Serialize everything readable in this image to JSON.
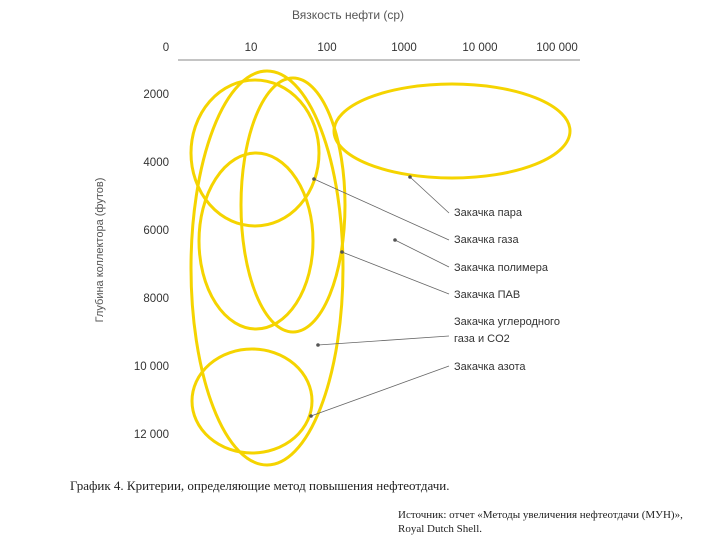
{
  "chart_data": {
    "type": "diagram",
    "x_axis": {
      "label": "Вязкость нефти (ср)",
      "ticks": [
        "0",
        "10",
        "100",
        "1000",
        "10 000",
        "100 000"
      ]
    },
    "y_axis": {
      "label": "Глубина коллектора (футов)",
      "ticks": [
        "2000",
        "4000",
        "6000",
        "8000",
        "10 000",
        "12 000"
      ]
    },
    "ellipse_color": "#f5d400",
    "methods": [
      {
        "label": "Закачка пара",
        "lines": [
          "Закачка пара"
        ]
      },
      {
        "label": "Закачка газа",
        "lines": [
          "Закачка газа"
        ]
      },
      {
        "label": "Закачка полимера",
        "lines": [
          "Закачка полимера"
        ]
      },
      {
        "label": "Закачка ПАВ",
        "lines": [
          "Закачка ПАВ"
        ]
      },
      {
        "label": "Закачка углеродного газа и CO2",
        "lines": [
          "Закачка углеродного",
          "газа и CO2"
        ]
      },
      {
        "label": "Закачка азота",
        "lines": [
          "Закачка азота"
        ]
      }
    ]
  },
  "caption": "График 4. Критерии, определяющие метод повышения нефтеотдачи.",
  "source": {
    "line1": "Источник: отчет «Методы увеличения нефтеотдачи (МУН)»,",
    "line2": "Royal Dutch Shell."
  }
}
